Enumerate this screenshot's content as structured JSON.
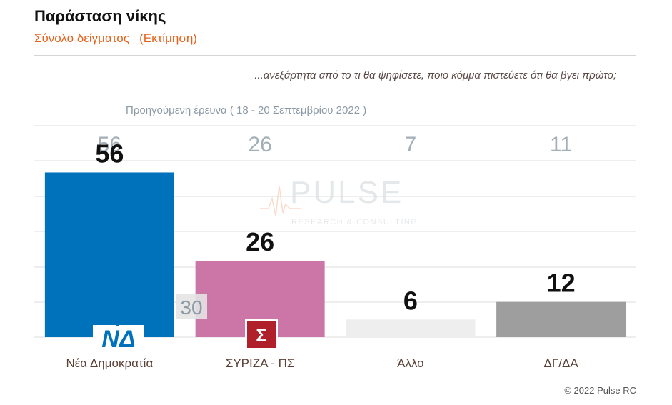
{
  "header": {
    "title": "Παράσταση νίκης",
    "subtitle": "Σύνολο δείγματος   (Εκτίμηση)"
  },
  "question": "...ανεξάρτητα από το τι θα ψηφίσετε, ποιο κόμμα πιστεύετε ότι θα βγει πρώτο;",
  "previous_survey": {
    "label": "Προηγούμενη έρευνα  ( 18 - 20 Σεπτεμβρίου  2022 )"
  },
  "watermark": {
    "name": "PULSE",
    "tagline": "RESEARCH & CONSULTING"
  },
  "logos": {
    "nd_text": "ΝΔ",
    "syriza_text": "Σ"
  },
  "colors": {
    "accent": "#e8611a",
    "nd": "#0072bb",
    "syriza": "#cc76a8",
    "other": "#eeeeee",
    "dkna": "#9e9e9e",
    "prev_value": "#a3afb7"
  },
  "footer": {
    "copyright": "© 2022 Pulse RC"
  },
  "chart_data": {
    "type": "bar",
    "categories": [
      "Νέα Δημοκρατία",
      "ΣΥΡΙΖΑ - ΠΣ",
      "Άλλο",
      "ΔΓ/ΔΑ"
    ],
    "values": [
      56,
      26,
      6,
      12
    ],
    "previous_values": [
      56,
      26,
      7,
      11
    ],
    "gap_label": "30",
    "ylim": [
      0,
      60
    ],
    "grid": true,
    "title": "Παράσταση νίκης",
    "xlabel": "",
    "ylabel": ""
  }
}
